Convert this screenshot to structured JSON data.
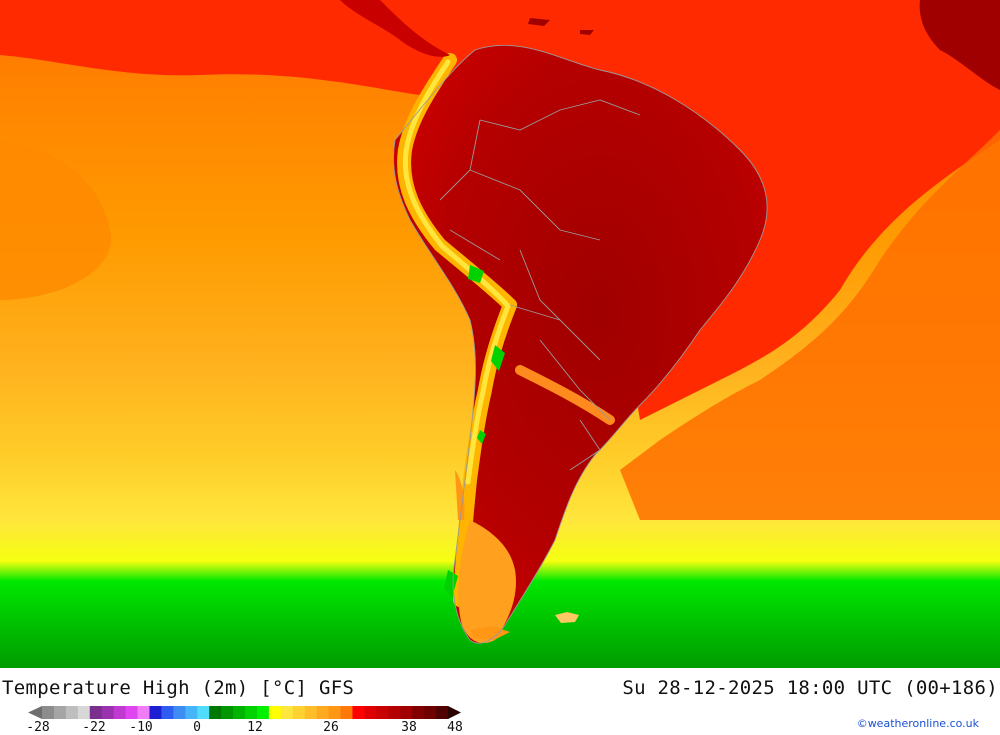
{
  "header": {
    "title_left": "Temperature High (2m) [°C] GFS",
    "title_right": "Su 28-12-2025 18:00 UTC (00+186)"
  },
  "legend": {
    "swatches": [
      "#8c8c8c",
      "#a5a5a5",
      "#bebebe",
      "#d7d7d7",
      "#7a2e8e",
      "#9a32b0",
      "#c03ad2",
      "#e046f0",
      "#f07cf7",
      "#1e1ed2",
      "#2e5cf0",
      "#3c8cf4",
      "#46b4f8",
      "#50dcfc",
      "#007800",
      "#009600",
      "#00b400",
      "#00d200",
      "#00f000",
      "#ffff00",
      "#ffe63c",
      "#ffd232",
      "#ffbe28",
      "#ffaa1e",
      "#ff9614",
      "#ff780a",
      "#ff0000",
      "#e10000",
      "#c80000",
      "#b40000",
      "#a00000",
      "#820000",
      "#6e0000",
      "#500000"
    ],
    "ticks": [
      "-28",
      "-22",
      "-10",
      "0",
      "12",
      "26",
      "38",
      "48"
    ]
  },
  "credit": "©weatheronline.co.uk"
}
